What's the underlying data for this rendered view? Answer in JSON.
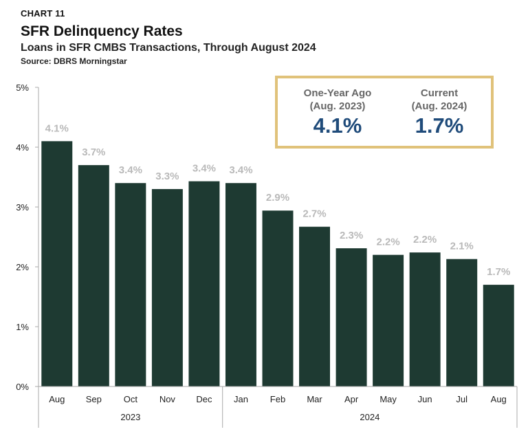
{
  "header": {
    "kicker": "CHART 11",
    "title": "SFR Delinquency Rates",
    "subtitle": "Loans in SFR CMBS Transactions, Through August 2024",
    "source": "Source: DBRS Morningstar"
  },
  "callout": {
    "left": {
      "label_line1": "One-Year Ago",
      "label_line2": "(Aug. 2023)",
      "value": "4.1%"
    },
    "right": {
      "label_line1": "Current",
      "label_line2": "(Aug. 2024)",
      "value": "1.7%"
    }
  },
  "chart_data": {
    "type": "bar",
    "categories": [
      "Aug",
      "Sep",
      "Oct",
      "Nov",
      "Dec",
      "Jan",
      "Feb",
      "Mar",
      "Apr",
      "May",
      "Jun",
      "Jul",
      "Aug"
    ],
    "values": [
      4.1,
      3.7,
      3.4,
      3.3,
      3.43,
      3.4,
      2.94,
      2.67,
      2.31,
      2.2,
      2.24,
      2.13,
      1.7
    ],
    "data_labels": [
      "4.1%",
      "3.7%",
      "3.4%",
      "3.3%",
      "3.4%",
      "3.4%",
      "2.9%",
      "2.7%",
      "2.3%",
      "2.2%",
      "2.2%",
      "2.1%",
      "1.7%"
    ],
    "year_groups": [
      {
        "label": "2023",
        "count": 5
      },
      {
        "label": "2024",
        "count": 8
      }
    ],
    "yticks": [
      "0%",
      "1%",
      "2%",
      "3%",
      "4%",
      "5%"
    ],
    "ylim": [
      0,
      5
    ],
    "xlabel": "",
    "ylabel": "",
    "colors": {
      "bar": "#1e3a32",
      "data_label": "#b9b9b9",
      "axis": "#aaaaaa",
      "callout_border": "#e0c27a",
      "callout_value": "#1f4b7a"
    },
    "grid": false
  }
}
